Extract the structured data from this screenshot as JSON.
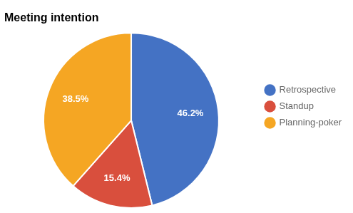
{
  "chart_data": {
    "type": "pie",
    "title": "Meeting intention",
    "categories": [
      "Retrospective",
      "Standup",
      "Planning-poker"
    ],
    "values": [
      46.2,
      15.4,
      38.5
    ],
    "value_labels": [
      "46.2%",
      "15.4%",
      "38.5%"
    ],
    "colors": [
      "#4472C4",
      "#D94F3D",
      "#F5A623"
    ],
    "data_labels": true,
    "legend": "right"
  }
}
